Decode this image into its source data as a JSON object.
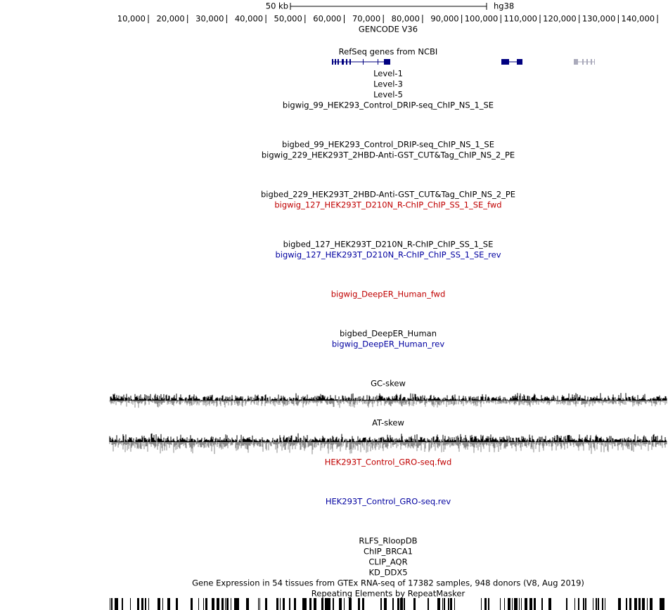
{
  "ruler": {
    "scale": "50 kb",
    "assembly": "hg38",
    "ticks": [
      "10,000",
      "20,000",
      "30,000",
      "40,000",
      "50,000",
      "60,000",
      "70,000",
      "80,000",
      "90,000",
      "100,000",
      "110,000",
      "120,000",
      "130,000",
      "140,000"
    ]
  },
  "tracks": [
    {
      "label": "GENCODE V36",
      "color": "#000000"
    },
    {
      "label": "RefSeq genes from NCBI",
      "color": "#000000"
    },
    {
      "label": "Level-1",
      "color": "#000000"
    },
    {
      "label": "Level-3",
      "color": "#000000"
    },
    {
      "label": "Level-5",
      "color": "#000000"
    },
    {
      "label": "bigwig_99_HEK293_Control_DRIP-seq_ChIP_NS_1_SE",
      "color": "#000000"
    },
    {
      "label": "bigbed_99_HEK293_Control_DRIP-seq_ChIP_NS_1_SE",
      "color": "#000000"
    },
    {
      "label": "bigwig_229_HEK293T_2HBD-Anti-GST_CUT&Tag_ChIP_NS_2_PE",
      "color": "#000000"
    },
    {
      "label": "bigbed_229_HEK293T_2HBD-Anti-GST_CUT&Tag_ChIP_NS_2_PE",
      "color": "#000000"
    },
    {
      "label": "bigwig_127_HEK293T_D210N_R-ChIP_ChIP_SS_1_SE_fwd",
      "color": "#c00000"
    },
    {
      "label": "bigbed_127_HEK293T_D210N_R-ChIP_ChIP_SS_1_SE",
      "color": "#000000"
    },
    {
      "label": "bigwig_127_HEK293T_D210N_R-ChIP_ChIP_SS_1_SE_rev",
      "color": "#0000a0"
    },
    {
      "label": "bigwig_DeepER_Human_fwd",
      "color": "#c00000"
    },
    {
      "label": "bigbed_DeepER_Human",
      "color": "#000000"
    },
    {
      "label": "bigwig_DeepER_Human_rev",
      "color": "#0000a0"
    },
    {
      "label": "GC-skew",
      "color": "#000000"
    },
    {
      "label": "AT-skew",
      "color": "#000000"
    },
    {
      "label": "HEK293T_Control_GRO-seq.fwd",
      "color": "#c00000"
    },
    {
      "label": "HEK293T_Control_GRO-seq.rev",
      "color": "#0000a0"
    },
    {
      "label": "RLFS_RloopDB",
      "color": "#000000"
    },
    {
      "label": "ChIP_BRCA1",
      "color": "#000000"
    },
    {
      "label": "CLIP_AQR",
      "color": "#000000"
    },
    {
      "label": "KD_DDX5",
      "color": "#000000"
    },
    {
      "label": "Gene Expression in 54 tissues from GTEx RNA-seq of 17382 samples, 948 donors (V8, Aug 2019)",
      "color": "#000000"
    },
    {
      "label": "Repeating Elements by RepeatMasker",
      "color": "#000000"
    }
  ]
}
